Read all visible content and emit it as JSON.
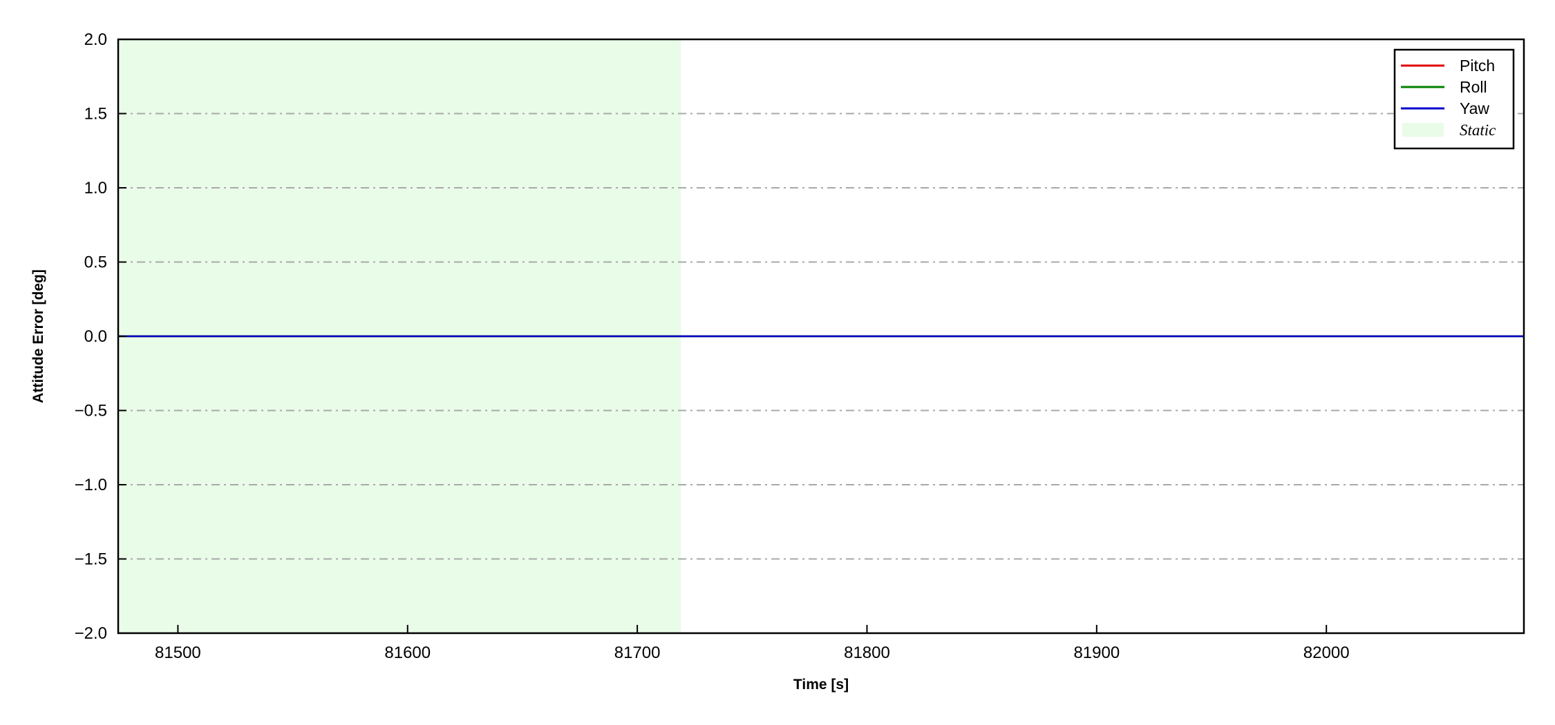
{
  "chart_data": {
    "type": "line",
    "title": "",
    "xlabel": "Time [s]",
    "ylabel": "Attitude Error [deg]",
    "xlim": [
      81474,
      82086
    ],
    "ylim": [
      -2.0,
      2.0
    ],
    "xticks": [
      81500,
      81600,
      81700,
      81800,
      81900,
      82000
    ],
    "xtick_labels": [
      "81500",
      "81600",
      "81700",
      "81800",
      "81900",
      "82000"
    ],
    "yticks": [
      -2.0,
      -1.5,
      -1.0,
      -0.5,
      0.0,
      0.5,
      1.0,
      1.5,
      2.0
    ],
    "ytick_labels": [
      "−2.0",
      "−1.5",
      "−1.0",
      "−0.5",
      "0.0",
      "0.5",
      "1.0",
      "1.5",
      "2.0"
    ],
    "grid": "horizontal dash-dot",
    "legend_position": "top-right",
    "series": [
      {
        "name": "Pitch",
        "color": "#e00000",
        "x": [
          81474,
          82086
        ],
        "y": [
          0,
          0
        ]
      },
      {
        "name": "Roll",
        "color": "#008000",
        "x": [
          81474,
          82086
        ],
        "y": [
          0,
          0
        ]
      },
      {
        "name": "Yaw",
        "color": "#0000cc",
        "x": [
          81474,
          82086
        ],
        "y": [
          0,
          0
        ]
      }
    ],
    "spans": [
      {
        "name": "Static",
        "color": "#e8fce8",
        "x": [
          81474,
          81719
        ]
      }
    ]
  }
}
